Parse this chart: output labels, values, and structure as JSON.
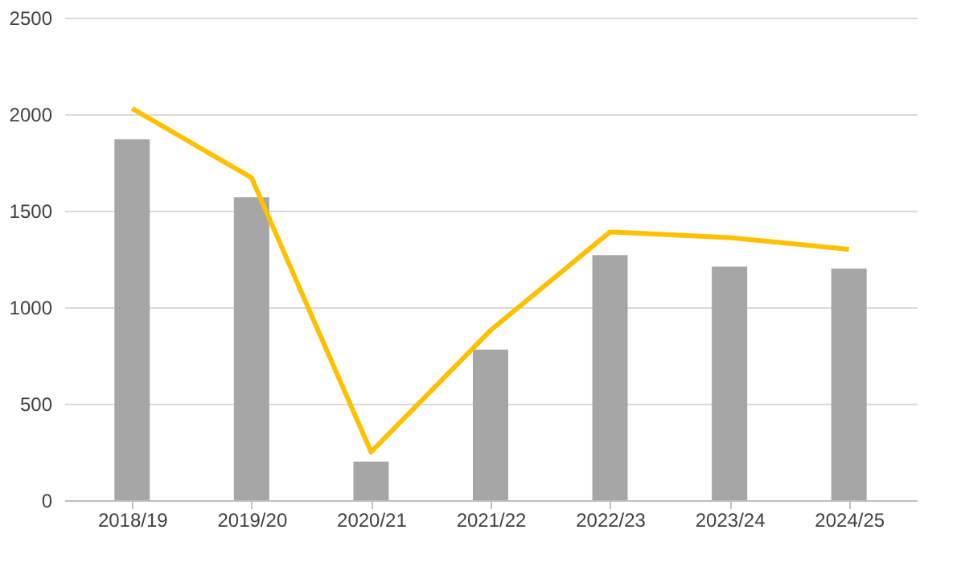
{
  "chart_data": {
    "type": "bar",
    "categories": [
      "2018/19",
      "2019/20",
      "2020/21",
      "2021/22",
      "2022/23",
      "2023/24",
      "2024/25"
    ],
    "series": [
      {
        "color": "#a6a6a6",
        "values": [
          1870,
          1570,
          200,
          780,
          1270,
          1210,
          1200
        ]
      },
      {
        "type": "line",
        "color": "#ffc000",
        "values": [
          2030,
          1670,
          250,
          880,
          1390,
          1360,
          1300
        ]
      }
    ],
    "ylim": [
      0,
      2500
    ],
    "yticks": [
      0,
      500,
      1000,
      1500,
      2000,
      2500
    ],
    "grid": "y",
    "marker": "none",
    "line_style": "solid"
  }
}
